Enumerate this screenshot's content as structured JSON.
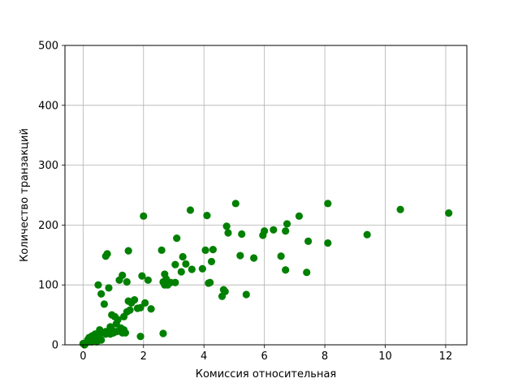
{
  "chart_data": {
    "type": "scatter",
    "title": "",
    "xlabel": "Комиссия относительная",
    "ylabel": "Количество транзакций",
    "xlim": [
      -0.6,
      12.7
    ],
    "ylim": [
      0,
      500
    ],
    "xticks": [
      0,
      2,
      4,
      6,
      8,
      10,
      12
    ],
    "yticks": [
      0,
      100,
      200,
      300,
      400,
      500
    ],
    "grid": true,
    "legend": "none",
    "marker_color": "#008000",
    "series": [
      {
        "x": [
          0.0,
          0.05,
          0.1,
          0.15,
          0.2,
          0.25,
          0.3,
          0.35,
          0.4,
          0.45,
          0.5,
          0.5,
          0.55,
          0.6,
          0.6,
          0.7,
          0.75,
          0.8,
          0.85,
          0.9,
          0.95,
          1.0,
          1.05,
          1.1,
          1.15,
          1.2,
          1.3,
          1.35,
          1.4,
          0.3,
          0.4,
          0.5,
          0.55,
          0.6,
          0.7,
          0.75,
          0.75,
          0.8,
          0.9,
          0.95,
          1.0,
          1.1,
          1.2,
          1.25,
          1.3,
          1.35,
          1.45,
          1.45,
          1.5,
          1.55,
          1.6,
          1.7,
          1.8,
          1.9,
          1.95,
          2.0,
          2.05,
          2.15,
          2.25,
          2.6,
          2.65,
          2.7,
          2.7,
          2.75,
          2.8,
          2.9,
          3.05,
          3.05,
          3.1,
          3.25,
          3.3,
          3.4,
          3.55,
          3.6,
          3.95,
          4.05,
          4.1,
          4.15,
          4.2,
          4.25,
          4.3,
          4.6,
          4.65,
          4.7,
          4.75,
          4.8,
          5.05,
          5.2,
          5.25,
          5.4,
          5.65,
          5.95,
          6.0,
          6.3,
          6.55,
          6.7,
          6.7,
          6.75,
          7.15,
          7.4,
          7.45,
          8.1,
          8.1,
          9.4,
          10.5,
          12.1,
          1.9,
          2.65,
          1.5
        ],
        "y": [
          2,
          0,
          3,
          8,
          12,
          5,
          15,
          10,
          18,
          5,
          8,
          100,
          25,
          85,
          20,
          68,
          148,
          152,
          95,
          18,
          50,
          20,
          47,
          35,
          42,
          108,
          116,
          47,
          20,
          5,
          12,
          16,
          10,
          8,
          20,
          22,
          18,
          20,
          30,
          25,
          20,
          22,
          23,
          28,
          20,
          25,
          55,
          105,
          157,
          58,
          70,
          75,
          61,
          62,
          115,
          215,
          70,
          108,
          60,
          158,
          105,
          118,
          100,
          110,
          100,
          104,
          104,
          134,
          178,
          122,
          147,
          135,
          225,
          126,
          127,
          158,
          216,
          103,
          104,
          139,
          159,
          81,
          92,
          89,
          198,
          187,
          236,
          149,
          185,
          84,
          145,
          183,
          190,
          192,
          148,
          190,
          125,
          202,
          215,
          121,
          173,
          236,
          170,
          184,
          226,
          220,
          14,
          19,
          73
        ]
      }
    ]
  }
}
